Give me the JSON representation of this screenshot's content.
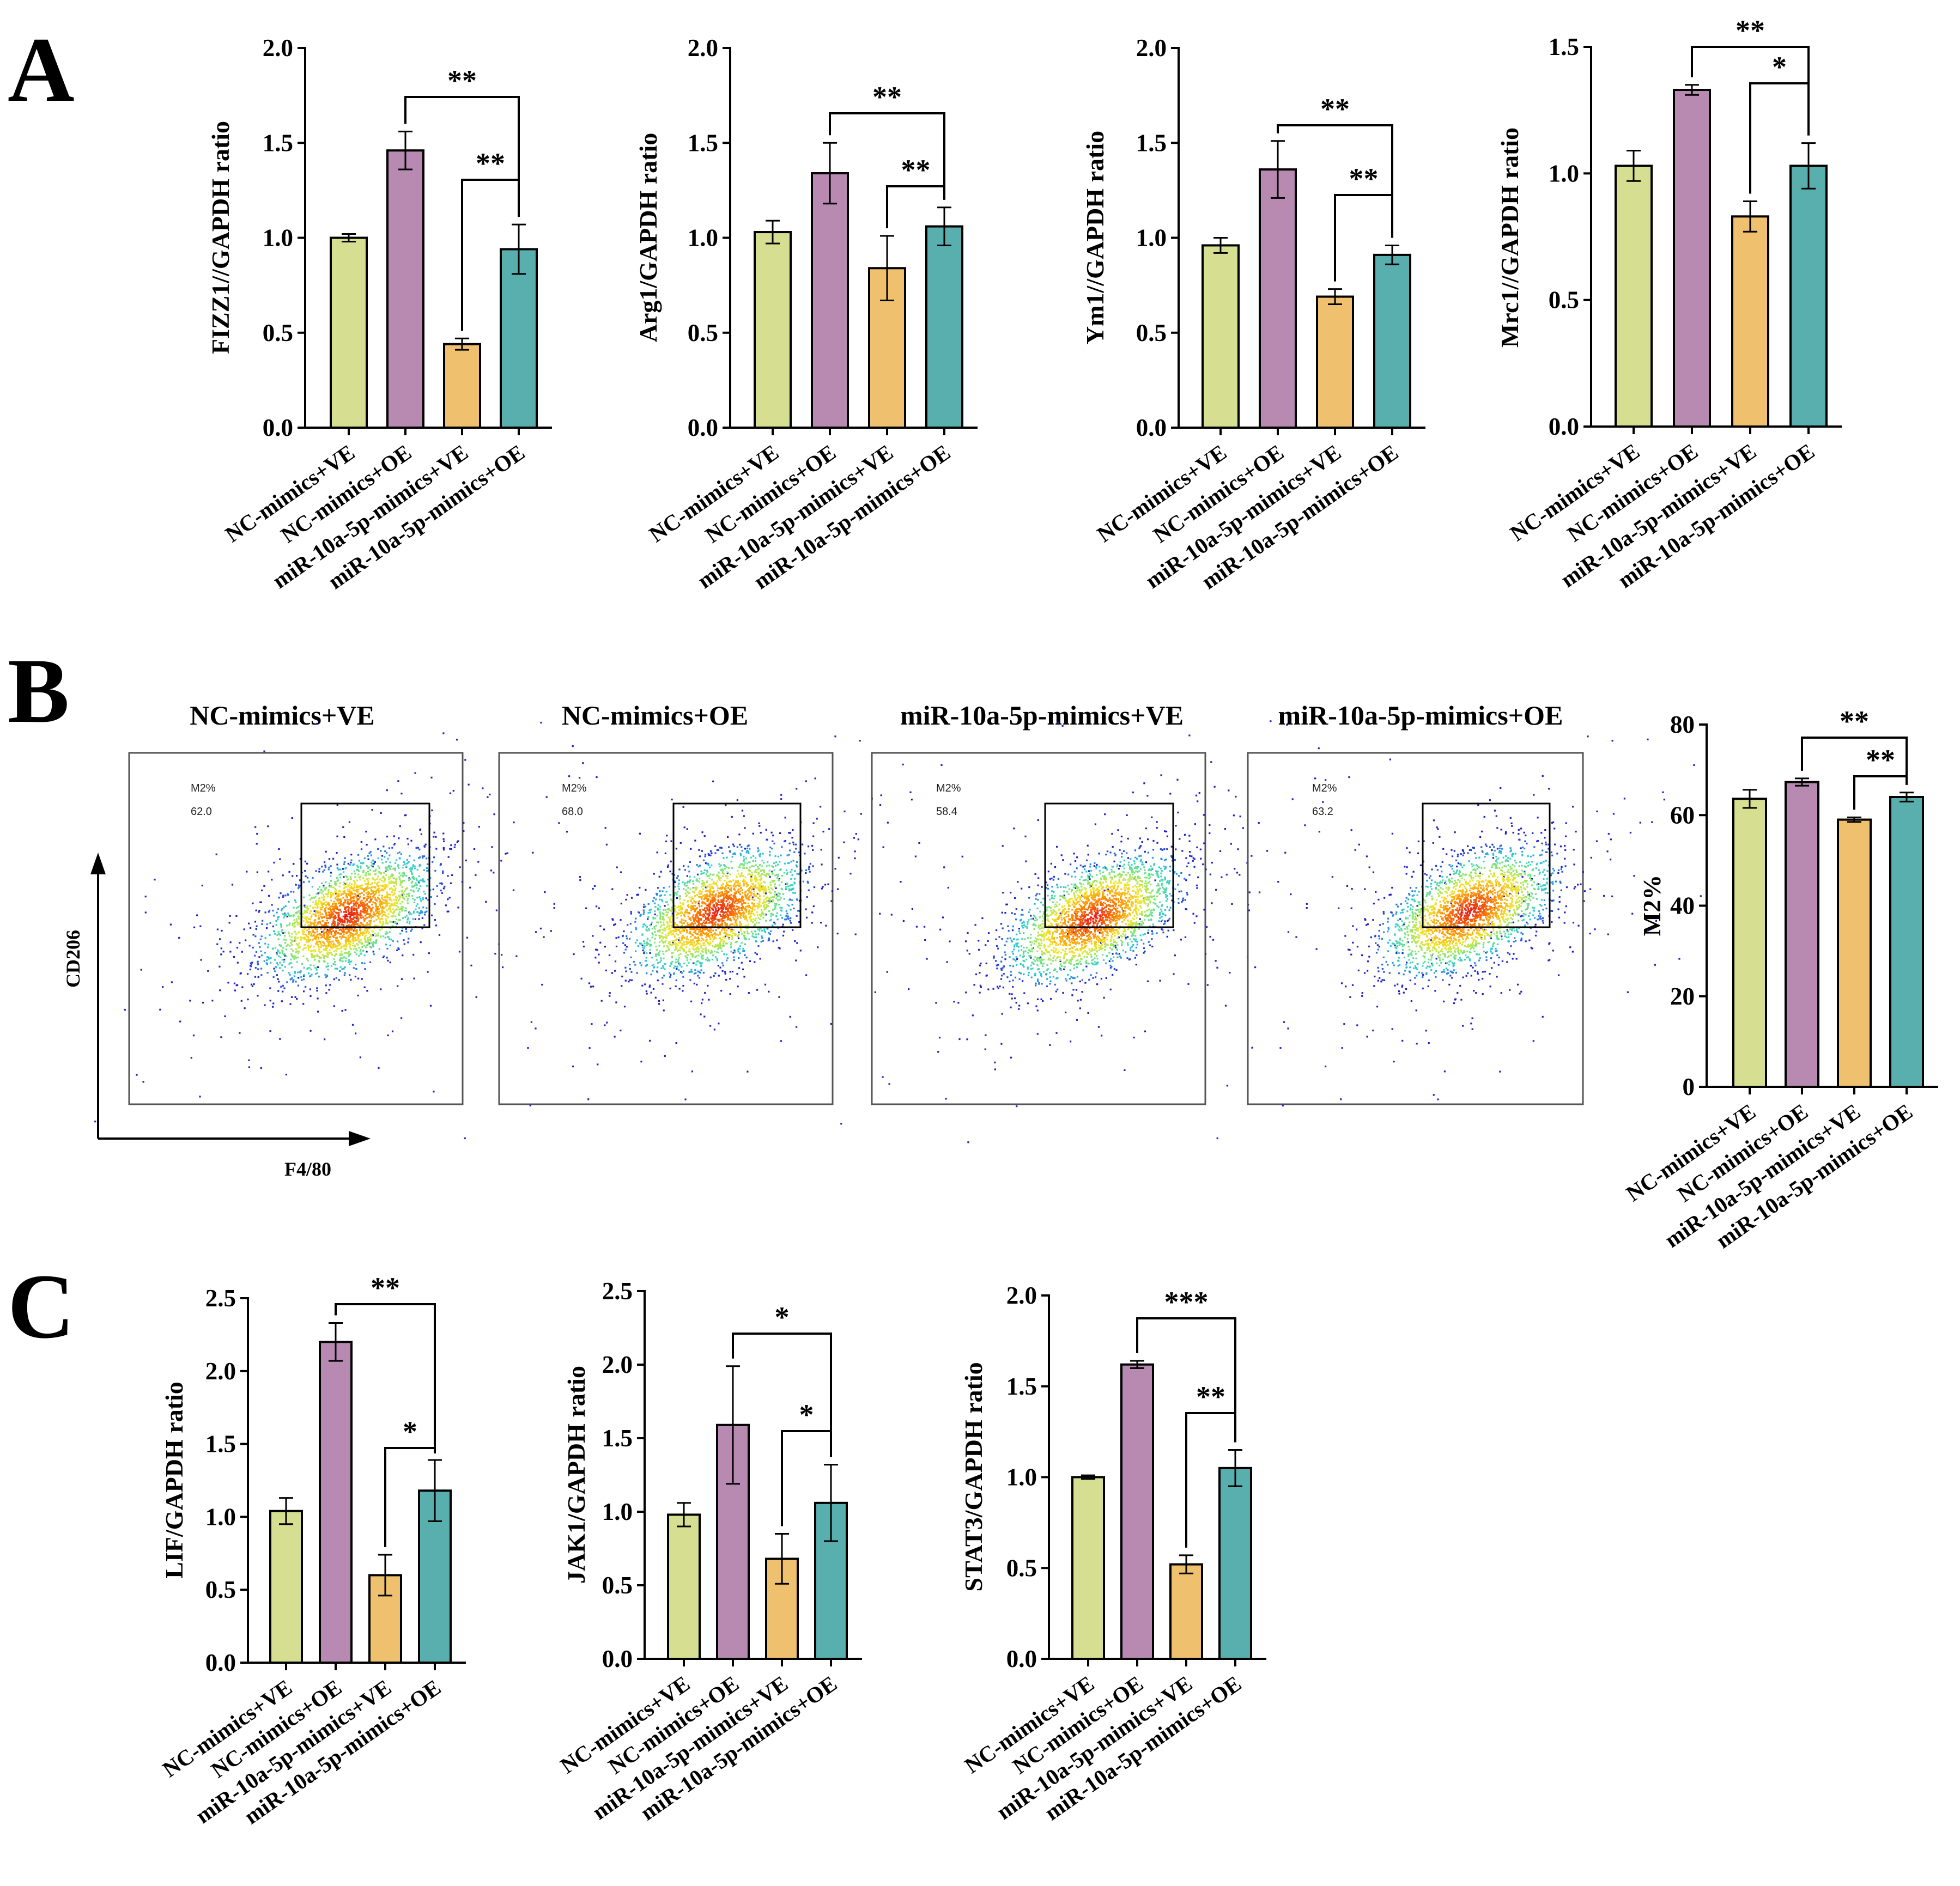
{
  "panels": {
    "A": "A",
    "B": "B",
    "C": "C"
  },
  "colors": {
    "NC-mimics+VE": "#d6df91",
    "NC-mimics+OE": "#b889b1",
    "miR-10a-5p-mimics+VE": "#efc16e",
    "miR-10a-5p-mimics+OE": "#59aeae"
  },
  "chart_data": [
    {
      "id": "A1",
      "panel": "A",
      "type": "bar",
      "ylabel": "FIZZ1//GAPDH ratio",
      "ylim": [
        0,
        2.0
      ],
      "ytick_labels": [
        "0.0",
        "0.5",
        "1.0",
        "1.5",
        "2.0"
      ],
      "categories": [
        "NC-mimics+VE",
        "NC-mimics+OE",
        "miR-10a-5p-mimics+VE",
        "miR-10a-5p-mimics+OE"
      ],
      "values": [
        1.0,
        1.46,
        0.44,
        0.94
      ],
      "errors": [
        0.02,
        0.1,
        0.03,
        0.13
      ],
      "significance": [
        {
          "from": 1,
          "to": 3,
          "label": "**"
        },
        {
          "from": 2,
          "to": 3,
          "label": "**"
        }
      ]
    },
    {
      "id": "A2",
      "panel": "A",
      "type": "bar",
      "ylabel": "Arg1/GAPDH ratio",
      "ylim": [
        0,
        2.0
      ],
      "ytick_labels": [
        "0.0",
        "0.5",
        "1.0",
        "1.5",
        "2.0"
      ],
      "categories": [
        "NC-mimics+VE",
        "NC-mimics+OE",
        "miR-10a-5p-mimics+VE",
        "miR-10a-5p-mimics+OE"
      ],
      "values": [
        1.03,
        1.34,
        0.84,
        1.06
      ],
      "errors": [
        0.06,
        0.16,
        0.17,
        0.1
      ],
      "significance": [
        {
          "from": 1,
          "to": 3,
          "label": "**"
        },
        {
          "from": 2,
          "to": 3,
          "label": "**"
        }
      ]
    },
    {
      "id": "A3",
      "panel": "A",
      "type": "bar",
      "ylabel": "Ym1//GAPDH ratio",
      "ylim": [
        0,
        2.0
      ],
      "ytick_labels": [
        "0.0",
        "0.5",
        "1.0",
        "1.5",
        "2.0"
      ],
      "categories": [
        "NC-mimics+VE",
        "NC-mimics+OE",
        "miR-10a-5p-mimics+VE",
        "miR-10a-5p-mimics+OE"
      ],
      "values": [
        0.96,
        1.36,
        0.69,
        0.91
      ],
      "errors": [
        0.04,
        0.15,
        0.04,
        0.05
      ],
      "significance": [
        {
          "from": 1,
          "to": 3,
          "label": "**"
        },
        {
          "from": 2,
          "to": 3,
          "label": "**"
        }
      ]
    },
    {
      "id": "A4",
      "panel": "A",
      "type": "bar",
      "ylabel": "Mrc1//GAPDH ratio",
      "ylim": [
        0,
        1.5
      ],
      "ytick_labels": [
        "0.0",
        "0.5",
        "1.0",
        "1.5"
      ],
      "categories": [
        "NC-mimics+VE",
        "NC-mimics+OE",
        "miR-10a-5p-mimics+VE",
        "miR-10a-5p-mimics+OE"
      ],
      "values": [
        1.03,
        1.33,
        0.83,
        1.03
      ],
      "errors": [
        0.06,
        0.02,
        0.06,
        0.09
      ],
      "significance": [
        {
          "from": 1,
          "to": 3,
          "label": "**"
        },
        {
          "from": 2,
          "to": 3,
          "label": "*"
        }
      ]
    },
    {
      "id": "B5",
      "panel": "B",
      "type": "bar",
      "ylabel": "M2%",
      "ylim": [
        0,
        80
      ],
      "ytick_labels": [
        "0",
        "20",
        "40",
        "60",
        "80"
      ],
      "categories": [
        "NC-mimics+VE",
        "NC-mimics+OE",
        "miR-10a-5p-mimics+VE",
        "miR-10a-5p-mimics+OE"
      ],
      "values": [
        63.6,
        67.3,
        59.0,
        64.0
      ],
      "errors": [
        2.0,
        0.8,
        0.5,
        1.0
      ],
      "significance": [
        {
          "from": 1,
          "to": 3,
          "label": "**"
        },
        {
          "from": 2,
          "to": 3,
          "label": "**"
        }
      ]
    },
    {
      "id": "C1",
      "panel": "C",
      "type": "bar",
      "ylabel": "LIF/GAPDH ratio",
      "ylim": [
        0,
        2.5
      ],
      "ytick_labels": [
        "0.0",
        "0.5",
        "1.0",
        "1.5",
        "2.0",
        "2.5"
      ],
      "categories": [
        "NC-mimics+VE",
        "NC-mimics+OE",
        "miR-10a-5p-mimics+VE",
        "miR-10a-5p-mimics+OE"
      ],
      "values": [
        1.04,
        2.2,
        0.6,
        1.18
      ],
      "errors": [
        0.09,
        0.13,
        0.14,
        0.21
      ],
      "significance": [
        {
          "from": 1,
          "to": 3,
          "label": "**"
        },
        {
          "from": 2,
          "to": 3,
          "label": "*"
        }
      ]
    },
    {
      "id": "C2",
      "panel": "C",
      "type": "bar",
      "ylabel": "JAK1/GAPDH ratio",
      "ylim": [
        0,
        2.5
      ],
      "ytick_labels": [
        "0.0",
        "0.5",
        "1.0",
        "1.5",
        "2.0",
        "2.5"
      ],
      "categories": [
        "NC-mimics+VE",
        "NC-mimics+OE",
        "miR-10a-5p-mimics+VE",
        "miR-10a-5p-mimics+OE"
      ],
      "values": [
        0.98,
        1.59,
        0.68,
        1.06
      ],
      "errors": [
        0.08,
        0.4,
        0.17,
        0.26
      ],
      "significance": [
        {
          "from": 1,
          "to": 3,
          "label": "*"
        },
        {
          "from": 2,
          "to": 3,
          "label": "*"
        }
      ]
    },
    {
      "id": "C3",
      "panel": "C",
      "type": "bar",
      "ylabel": "STAT3/GAPDH ratio",
      "ylim": [
        0,
        2.0
      ],
      "ytick_labels": [
        "0.0",
        "0.5",
        "1.0",
        "1.5",
        "2.0"
      ],
      "categories": [
        "NC-mimics+VE",
        "NC-mimics+OE",
        "miR-10a-5p-mimics+VE",
        "miR-10a-5p-mimics+OE"
      ],
      "values": [
        1.0,
        1.62,
        0.52,
        1.05
      ],
      "errors": [
        0.01,
        0.02,
        0.05,
        0.1
      ],
      "significance": [
        {
          "from": 1,
          "to": 3,
          "label": "***"
        },
        {
          "from": 2,
          "to": 3,
          "label": "**"
        }
      ]
    }
  ],
  "flow": {
    "x_axis_label": "F4/80",
    "y_axis_label": "CD206",
    "gate_name": "M2%",
    "plots": [
      {
        "title": "NC-mimics+VE",
        "percent": "62.0"
      },
      {
        "title": "NC-mimics+OE",
        "percent": "68.0"
      },
      {
        "title": "miR-10a-5p-mimics+VE",
        "percent": "58.4"
      },
      {
        "title": "miR-10a-5p-mimics+OE",
        "percent": "63.2"
      }
    ]
  }
}
